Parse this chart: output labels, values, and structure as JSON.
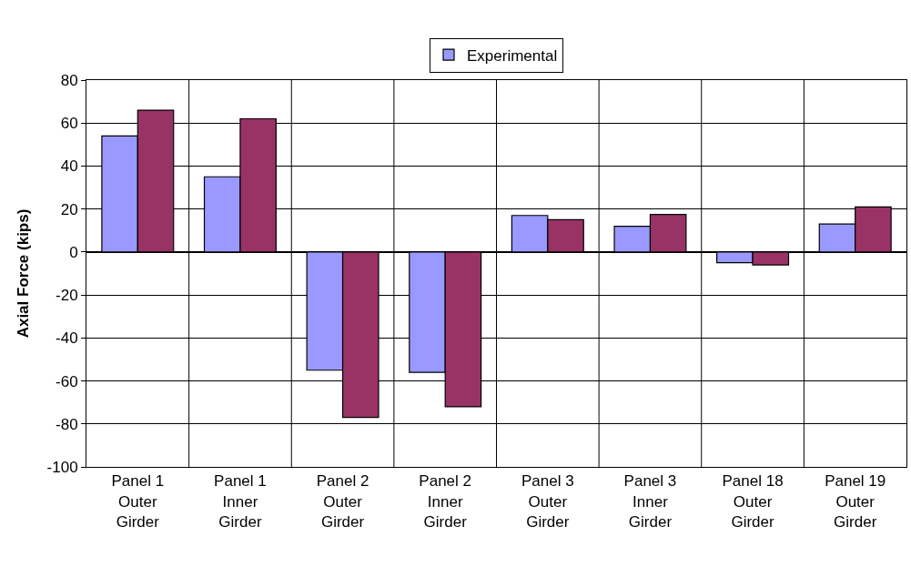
{
  "chart_data": {
    "type": "bar",
    "ylabel": "Axial Force (kips)",
    "categories": [
      "Panel 1 Outer Girder",
      "Panel 1 Inner Girder",
      "Panel 2 Outer Girder",
      "Panel 2 Inner Girder",
      "Panel 3 Outer Girder",
      "Panel 3 Inner Girder",
      "Panel 18 Outer Girder",
      "Panel 19 Outer Girder"
    ],
    "series": [
      {
        "name": "Experimental",
        "color": "#9999ff",
        "values": [
          54,
          35,
          -55,
          -56,
          17,
          12,
          -5,
          13
        ]
      },
      {
        "color": "#993366",
        "values": [
          66,
          62,
          -77,
          -72,
          15,
          17.5,
          -6,
          21
        ]
      }
    ],
    "ylim": [
      -100,
      80
    ],
    "yticks": [
      -100,
      -80,
      -60,
      -40,
      -20,
      0,
      20,
      40,
      60,
      80
    ],
    "grid": true,
    "legend": "top"
  }
}
